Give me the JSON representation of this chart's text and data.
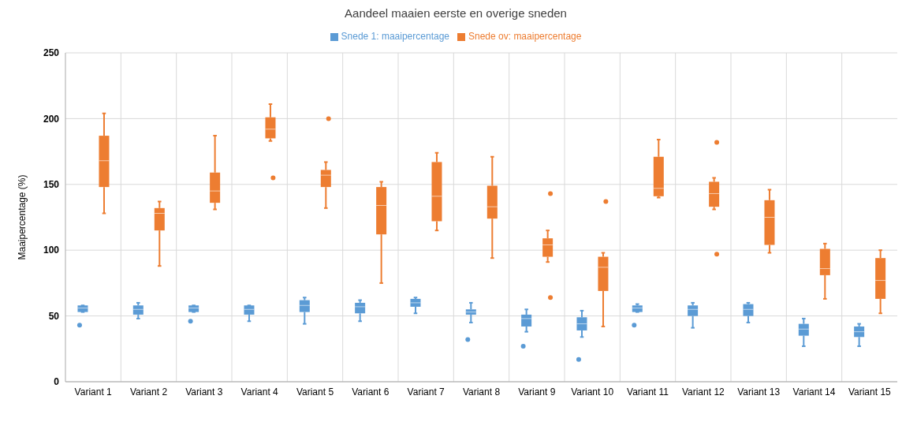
{
  "chart_data": {
    "type": "box",
    "title": "Aandeel maaien eerste en overige sneden",
    "ylabel": "Maaipercentage (%)",
    "categories": [
      "Variant 1",
      "Variant 2",
      "Variant 3",
      "Variant 4",
      "Variant 5",
      "Variant 6",
      "Variant 7",
      "Variant 8",
      "Variant 9",
      "Variant 10",
      "Variant 11",
      "Variant 12",
      "Variant 13",
      "Variant 14",
      "Variant 15"
    ],
    "ylim": [
      0,
      250
    ],
    "yticks": [
      0,
      50,
      100,
      150,
      200,
      250
    ],
    "grid": true,
    "legend": "top",
    "series": [
      {
        "name": "Snede 1: maaipercentage",
        "color": "#5b9bd5",
        "boxes": [
          {
            "low": 53,
            "q1": 53,
            "median": 56,
            "q3": 58,
            "high": 58,
            "outliers": [
              43
            ]
          },
          {
            "low": 48,
            "q1": 51,
            "median": 55,
            "q3": 58,
            "high": 60
          },
          {
            "low": 53,
            "q1": 53,
            "median": 56,
            "q3": 58,
            "high": 58,
            "outliers": [
              46
            ]
          },
          {
            "low": 46,
            "q1": 51,
            "median": 55,
            "q3": 58,
            "high": 58
          },
          {
            "low": 44,
            "q1": 53,
            "median": 58,
            "q3": 62,
            "high": 64
          },
          {
            "low": 46,
            "q1": 52,
            "median": 57,
            "q3": 60,
            "high": 62
          },
          {
            "low": 52,
            "q1": 57,
            "median": 60,
            "q3": 63,
            "high": 64
          },
          {
            "low": 45,
            "q1": 51,
            "median": 53,
            "q3": 55,
            "high": 60,
            "outliers": [
              32
            ]
          },
          {
            "low": 38,
            "q1": 42,
            "median": 48,
            "q3": 51,
            "high": 55,
            "outliers": [
              27
            ]
          },
          {
            "low": 34,
            "q1": 39,
            "median": 44,
            "q3": 49,
            "high": 54,
            "outliers": [
              17
            ]
          },
          {
            "low": 53,
            "q1": 53,
            "median": 56,
            "q3": 58,
            "high": 59,
            "outliers": [
              43
            ]
          },
          {
            "low": 41,
            "q1": 50,
            "median": 55,
            "q3": 58,
            "high": 60
          },
          {
            "low": 45,
            "q1": 50,
            "median": 55,
            "q3": 59,
            "high": 60
          },
          {
            "low": 27,
            "q1": 35,
            "median": 40,
            "q3": 44,
            "high": 48
          },
          {
            "low": 27,
            "q1": 34,
            "median": 38,
            "q3": 42,
            "high": 44
          }
        ]
      },
      {
        "name": "Snede ov: maaipercentage",
        "color": "#ed7d31",
        "boxes": [
          {
            "low": 128,
            "q1": 148,
            "median": 168,
            "q3": 187,
            "high": 204
          },
          {
            "low": 88,
            "q1": 115,
            "median": 128,
            "q3": 132,
            "high": 137
          },
          {
            "low": 131,
            "q1": 136,
            "median": 145,
            "q3": 159,
            "high": 187
          },
          {
            "low": 183,
            "q1": 185,
            "median": 192,
            "q3": 201,
            "high": 211,
            "outliers": [
              155
            ]
          },
          {
            "low": 132,
            "q1": 148,
            "median": 157,
            "q3": 161,
            "high": 167,
            "outliers": [
              200
            ]
          },
          {
            "low": 75,
            "q1": 112,
            "median": 134,
            "q3": 148,
            "high": 152
          },
          {
            "low": 115,
            "q1": 122,
            "median": 141,
            "q3": 167,
            "high": 174
          },
          {
            "low": 94,
            "q1": 124,
            "median": 133,
            "q3": 149,
            "high": 171
          },
          {
            "low": 91,
            "q1": 95,
            "median": 104,
            "q3": 109,
            "high": 115,
            "outliers": [
              143,
              64
            ]
          },
          {
            "low": 42,
            "q1": 69,
            "median": 87,
            "q3": 95,
            "high": 98,
            "outliers": [
              137
            ]
          },
          {
            "low": 140,
            "q1": 141,
            "median": 147,
            "q3": 171,
            "high": 184
          },
          {
            "low": 131,
            "q1": 133,
            "median": 143,
            "q3": 152,
            "high": 155,
            "outliers": [
              182,
              97
            ]
          },
          {
            "low": 98,
            "q1": 104,
            "median": 125,
            "q3": 138,
            "high": 146
          },
          {
            "low": 63,
            "q1": 81,
            "median": 86,
            "q3": 101,
            "high": 105
          },
          {
            "low": 52,
            "q1": 63,
            "median": 77,
            "q3": 94,
            "high": 100
          }
        ]
      }
    ]
  }
}
